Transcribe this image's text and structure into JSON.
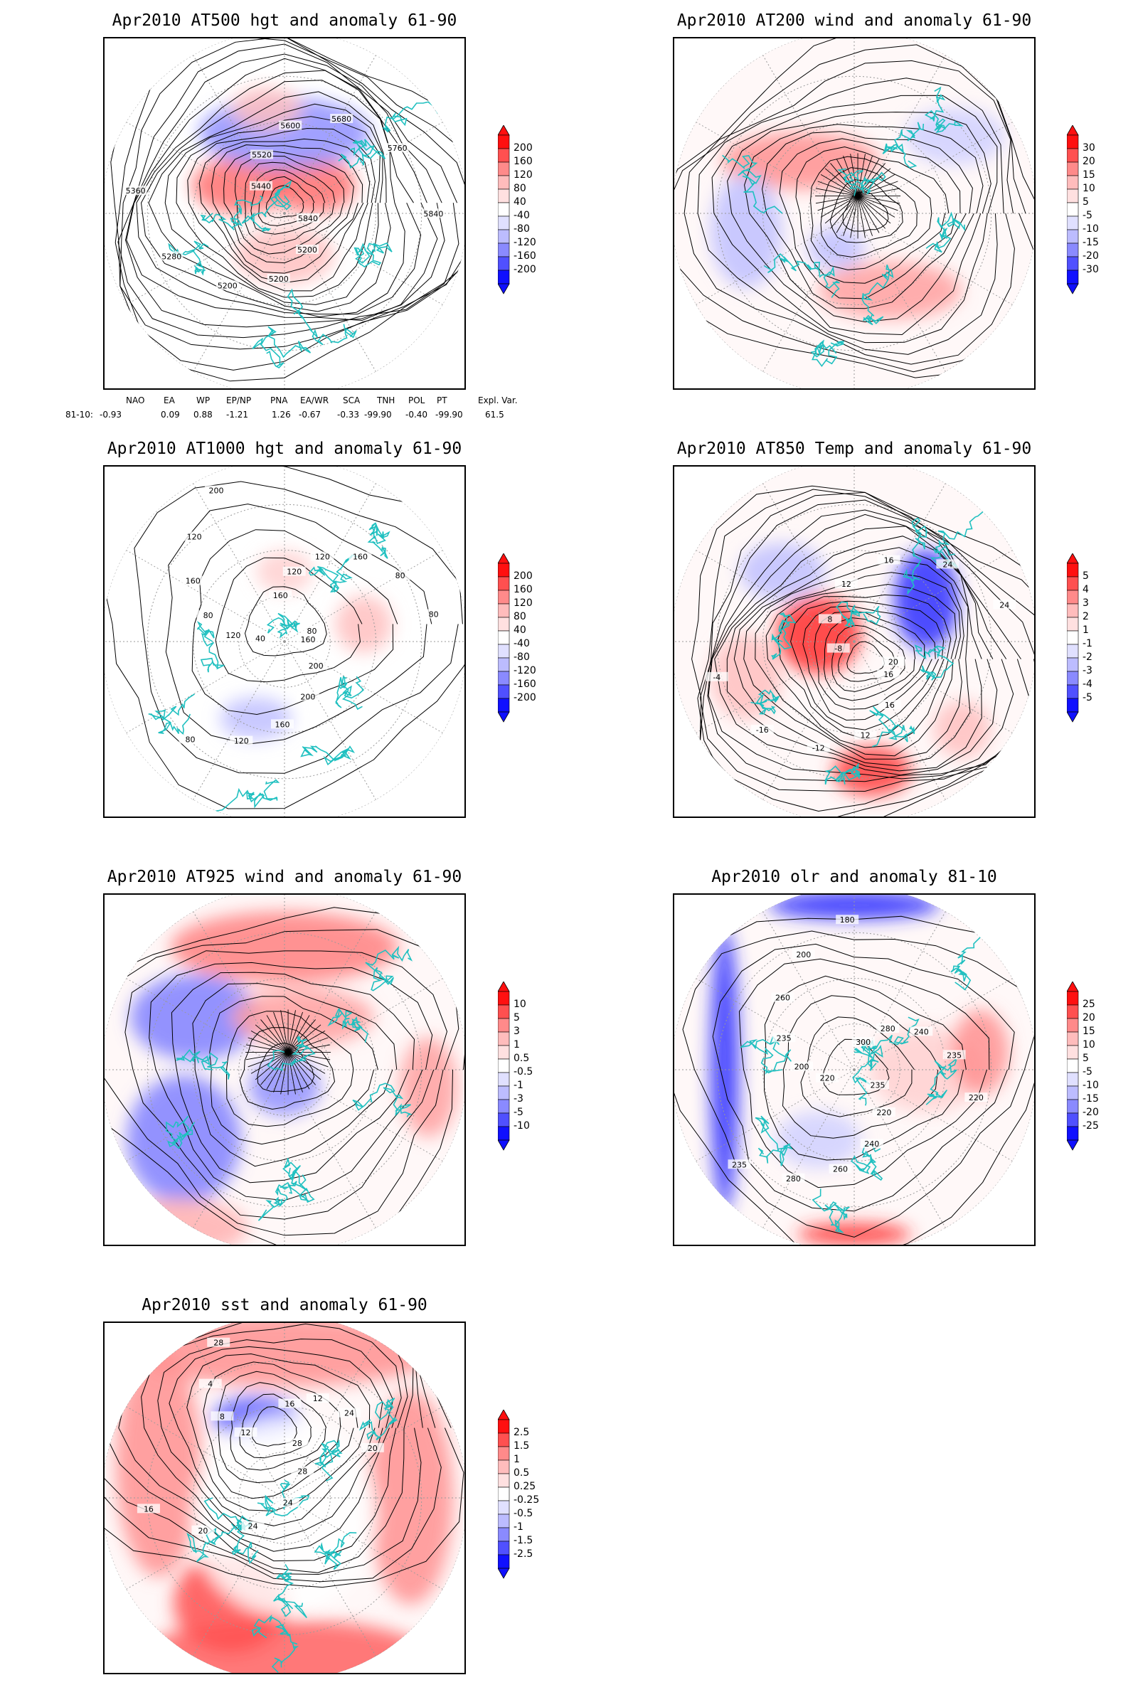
{
  "panels": [
    {
      "id": "p1",
      "title": "Apr2010 AT500 hgt and anomaly 61-90",
      "colorbar": [
        "200",
        "160",
        "120",
        "80",
        "40",
        "-40",
        "-80",
        "-120",
        "-160",
        "-200"
      ],
      "contour_labels": [
        "5840",
        "5200",
        "5200",
        "5200",
        "5280",
        "5360",
        "5440",
        "5520",
        "5600",
        "5680",
        "5760",
        "5840"
      ]
    },
    {
      "id": "p2",
      "title": "Apr2010 AT200 wind and anomaly 61-90",
      "colorbar": [
        "30",
        "20",
        "15",
        "10",
        "5",
        "-5",
        "-10",
        "-15",
        "-20",
        "-30"
      ],
      "contour_labels": []
    },
    {
      "id": "p3",
      "title": "Apr2010 AT1000 hgt and anomaly 61-90",
      "colorbar": [
        "200",
        "160",
        "120",
        "80",
        "40",
        "-40",
        "-80",
        "-120",
        "-160",
        "-200"
      ],
      "contour_labels": [
        "160",
        "200",
        "200",
        "160",
        "120",
        "80",
        "40",
        "120",
        "80",
        "160",
        "120",
        "200",
        "160",
        "120",
        "120",
        "160",
        "80",
        "80",
        "80"
      ]
    },
    {
      "id": "p4",
      "title": "Apr2010 AT850 Temp and anomaly 61-90",
      "colorbar": [
        "5",
        "4",
        "3",
        "2",
        "1",
        "-1",
        "-2",
        "-3",
        "-4",
        "-5"
      ],
      "contour_labels": [
        "16",
        "16",
        "12",
        "-12",
        "-16",
        "-4",
        "-8",
        "8",
        "12",
        "16",
        "24",
        "24",
        "20"
      ]
    },
    {
      "id": "p5",
      "title": "Apr2010 AT925 wind and anomaly 61-90",
      "colorbar": [
        "10",
        "5",
        "3",
        "1",
        "0.5",
        "-0.5",
        "-1",
        "-3",
        "-5",
        "-10"
      ],
      "contour_labels": []
    },
    {
      "id": "p6",
      "title": "Apr2010 olr and anomaly 81-10",
      "colorbar": [
        "25",
        "20",
        "15",
        "10",
        "5",
        "-5",
        "-10",
        "-15",
        "-20",
        "-25"
      ],
      "contour_labels": [
        "235",
        "220",
        "240",
        "260",
        "280",
        "235",
        "220",
        "200",
        "235",
        "260",
        "200",
        "180",
        "300",
        "280",
        "240",
        "235",
        "220"
      ]
    },
    {
      "id": "p7",
      "title": "Apr2010 sst and anomaly 61-90",
      "colorbar": [
        "2.5",
        "1.5",
        "1",
        "0.5",
        "0.25",
        "-0.25",
        "-0.5",
        "-1",
        "-1.5",
        "-2.5"
      ],
      "contour_labels": [
        "28",
        "28",
        "24",
        "24",
        "20",
        "16",
        "12",
        "8",
        "4",
        "28",
        "28",
        "20",
        "16",
        "12",
        "24",
        "20"
      ]
    }
  ],
  "teleconnection": {
    "headers": [
      "NAO",
      "EA",
      "WP",
      "EP/NP",
      "PNA",
      "EA/WR",
      "SCA",
      "TNH",
      "POL",
      "PT",
      "Expl. Var."
    ],
    "row_label": "81-10:",
    "values": [
      "-0.93",
      "0.09",
      "0.88",
      "-1.21",
      "1.26",
      "-0.67",
      "-0.33",
      "-99.90",
      "-0.40",
      "-99.90",
      "61.5"
    ]
  },
  "colors": {
    "red_max": "#ff0000",
    "blue_max": "#0000ff",
    "land_outline": "#20c0c0",
    "contour": "#000000"
  }
}
